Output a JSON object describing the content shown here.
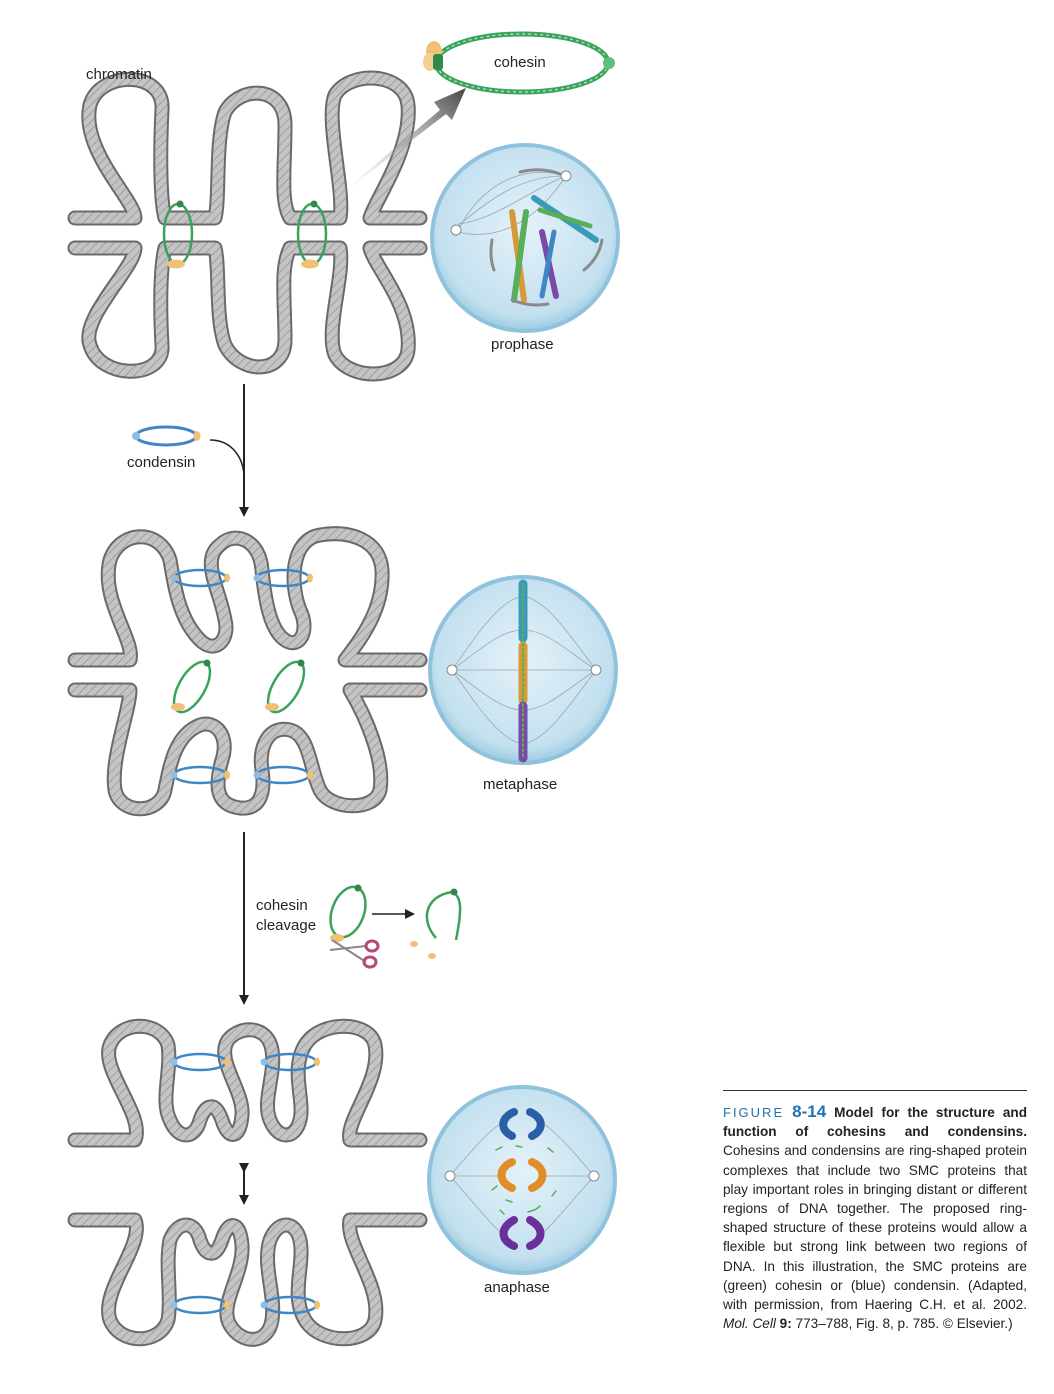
{
  "labels": {
    "chromatin": "chromatin",
    "cohesin": "cohesin",
    "prophase": "prophase",
    "condensin": "condensin",
    "metaphase": "metaphase",
    "cohesin_cleavage_1": "cohesin",
    "cohesin_cleavage_2": "cleavage",
    "anaphase": "anaphase"
  },
  "caption": {
    "figure_word": "FIGURE",
    "figure_number": "8-14",
    "title": "Model for the structure and function of cohesins and condensins.",
    "body": "Cohesins and condensins are ring-shaped protein complexes that include two SMC proteins that play important roles in bringing distant or different regions of DNA together. The proposed ring-shaped structure of these proteins would allow a flexible but strong link between two regions of DNA. In this illustration, the SMC proteins are (green) cohesin or (blue) condensin. (Adapted, with permission, from Haering C.H. et al. 2002.",
    "journal": "Mol. Cell",
    "volume": "9:",
    "pages": "773–788, Fig. 8, p. 785.",
    "copyright": "© Elsevier.)"
  },
  "colors": {
    "chromatin_fill": "#b9b9b9",
    "chromatin_edge": "#6d6d6d",
    "cohesin": "#3aa35a",
    "condensin": "#3f86c6",
    "protein_tan": "#f0c074",
    "cell_fill": "#cfe6f2",
    "cell_edge": "#8fc2dc",
    "scissors": "#b8487a",
    "arrow": "#222222",
    "caption_accent": "#1b73b3"
  }
}
